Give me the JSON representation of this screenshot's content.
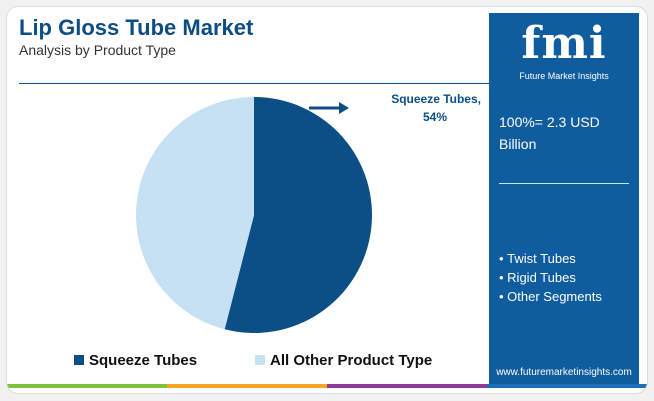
{
  "chart_data": {
    "type": "pie",
    "title": "Lip Gloss Tube Market",
    "subtitle": "Analysis by Product Type",
    "categories": [
      "Squeeze Tubes",
      "All Other Product Type"
    ],
    "values": [
      54,
      46
    ],
    "value_labels": [
      "54%",
      null
    ],
    "colors": [
      "#0b4f86",
      "#c6e1f4"
    ],
    "legend": "bottom"
  },
  "sidebar": {
    "logo": "fmi",
    "logo_caption": "Future Market Insights",
    "market_size": "100%= 2.3 USD Billion",
    "segments": [
      "Twist Tubes",
      "Rigid Tubes",
      "Other Segments"
    ],
    "website": "www.futuremarketinsights.com"
  }
}
